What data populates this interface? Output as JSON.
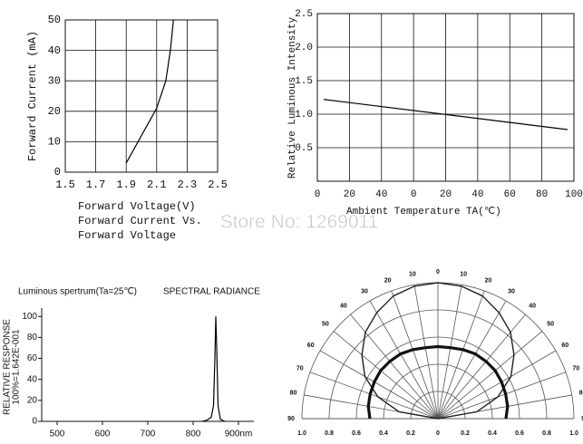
{
  "watermark": "Store No: 1269011",
  "chart_data": [
    {
      "type": "line",
      "xlabel": "Forward Voltage(V)",
      "caption": [
        "Forward Current  Vs.",
        "Forward Voltage"
      ],
      "ylabel": "Forward Current (mA)",
      "x": [
        1.9,
        2.0,
        2.1,
        2.16,
        2.19,
        2.21
      ],
      "series": [
        {
          "color": "#000000",
          "values": [
            3,
            12,
            21,
            30,
            40,
            50
          ]
        }
      ],
      "xlim": [
        1.5,
        2.5
      ],
      "xticks": [
        1.5,
        1.7,
        1.9,
        2.1,
        2.3,
        2.5
      ],
      "ylim": [
        0,
        50
      ],
      "yticks": [
        0,
        10,
        20,
        30,
        40,
        50
      ],
      "grid": true
    },
    {
      "type": "line",
      "xlabel": "Ambient Temperature TA(℃)",
      "ylabel": "Relative Luminous Intensity",
      "x": [
        -56,
        96
      ],
      "series": [
        {
          "color": "#000000",
          "values": [
            1.22,
            0.77
          ]
        }
      ],
      "xlim": [
        -60,
        100
      ],
      "xticks": [
        {
          "value": -60,
          "label": "0"
        },
        {
          "value": -40,
          "label": "20"
        },
        {
          "value": -20,
          "label": "40"
        },
        0,
        20,
        40,
        60,
        80,
        100
      ],
      "ylim": [
        0,
        2.5
      ],
      "yticks": [
        0.5,
        {
          "value": 1.0,
          "label": "1.0"
        },
        1.5,
        {
          "value": 2.0,
          "label": "2.0"
        },
        2.5
      ],
      "grid": true
    },
    {
      "type": "line",
      "title": "Luminous spertrum(Ta=25℃)",
      "subtitle": "SPECTRAL RADIANCE",
      "ylabel": [
        "RELATIVE RESPONSE",
        "100%=1.642E-001"
      ],
      "x": [
        820,
        830,
        840,
        845,
        848,
        850,
        852,
        855,
        860,
        870
      ],
      "series": [
        {
          "color": "#000000",
          "values": [
            0,
            1,
            4,
            15,
            60,
            100,
            70,
            15,
            2,
            0
          ]
        }
      ],
      "xlim": [
        466,
        934
      ],
      "xticks": [
        500,
        600,
        700,
        800,
        {
          "value": 900,
          "label": "900nm"
        }
      ],
      "ylim": [
        0,
        108
      ],
      "yticks": [
        0,
        20,
        40,
        60,
        80,
        100
      ],
      "grid": false
    },
    {
      "type": "polar",
      "angles": [
        -90,
        -80,
        -70,
        -60,
        -50,
        -40,
        -30,
        -20,
        -10,
        0,
        10,
        20,
        30,
        40,
        50,
        60,
        70,
        80,
        90
      ],
      "series": [
        {
          "color": "#222222",
          "values": [
            0,
            0.29,
            0.47,
            0.62,
            0.73,
            0.83,
            0.9,
            0.96,
            0.99,
            1.0,
            0.99,
            0.96,
            0.9,
            0.83,
            0.73,
            0.62,
            0.47,
            0.29,
            0
          ]
        },
        {
          "color": "#111111",
          "values": [
            0.5,
            0.52,
            0.53,
            0.54,
            0.55,
            0.55,
            0.55,
            0.54,
            0.53,
            0.53,
            0.53,
            0.54,
            0.55,
            0.55,
            0.55,
            0.54,
            0.53,
            0.52,
            0.5
          ]
        }
      ],
      "rlim": [
        0,
        1.0
      ],
      "rticks": [
        0,
        0.2,
        0.4,
        0.6,
        0.8,
        {
          "value": 1.0,
          "label": "1.0"
        }
      ],
      "angle_ticks": [
        {
          "value": -90,
          "label": "90"
        },
        {
          "value": -80,
          "label": "80"
        },
        {
          "value": -70,
          "label": "70"
        },
        {
          "value": -60,
          "label": "60"
        },
        {
          "value": -50,
          "label": "50"
        },
        {
          "value": -40,
          "label": "40"
        },
        {
          "value": -30,
          "label": "30"
        },
        {
          "value": -20,
          "label": "20"
        },
        {
          "value": -10,
          "label": "10"
        },
        0,
        10,
        20,
        30,
        40,
        50,
        60,
        70,
        80,
        90
      ]
    }
  ]
}
